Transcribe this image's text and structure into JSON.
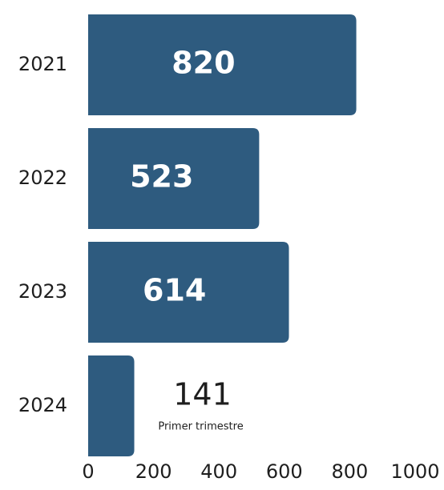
{
  "chart_data": {
    "type": "bar",
    "orientation": "horizontal",
    "categories": [
      "2021",
      "2022",
      "2023",
      "2024"
    ],
    "values": [
      820,
      523,
      614,
      141
    ],
    "data_labels": [
      "820",
      "523",
      "614",
      "141"
    ],
    "annotations": [
      {
        "category": "2024",
        "text": "Primer trimestre"
      }
    ],
    "x_ticks": [
      "0",
      "200",
      "400",
      "600",
      "800",
      "1000"
    ],
    "xlim": [
      0,
      1000
    ],
    "title": "",
    "xlabel": "",
    "ylabel": "",
    "grid": false,
    "legend": "none",
    "bar_color": "#2e5b7f"
  }
}
